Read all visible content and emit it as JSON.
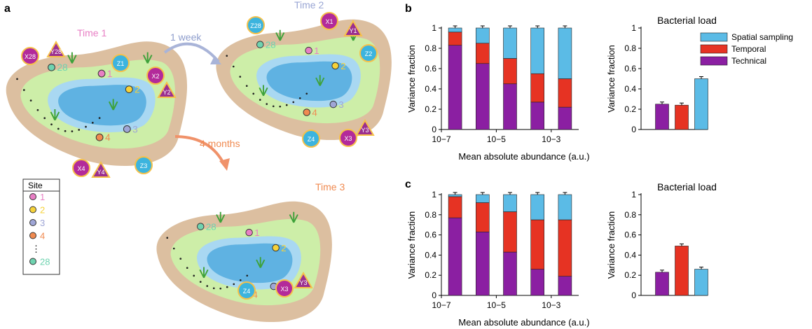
{
  "panel_letters": {
    "a": "a",
    "b": "b",
    "c": "c"
  },
  "schematic": {
    "time1": "Time 1",
    "time2": "Time 2",
    "time3": "Time 3",
    "arrow_week": "1 week",
    "arrow_months": "4 months",
    "legend_title": "Site",
    "legend_items": [
      "1",
      "2",
      "3",
      "4",
      "⋮",
      "28"
    ],
    "site_labels": [
      "1",
      "2",
      "3",
      "4",
      "28"
    ],
    "sample_labels": {
      "X1": "X1",
      "Y1": "Y1",
      "Z1": "Z1",
      "X2": "X2",
      "Y2": "Y2",
      "Z2": "Z2",
      "X3": "X3",
      "Y3": "Y3",
      "Z3": "Z3",
      "X4": "X4",
      "Y4": "Y4",
      "Z4": "Z4",
      "X28": "X28",
      "Y28": "Y28",
      "Z28": "Z28"
    },
    "colors": {
      "land": "#dcbfa0",
      "grass": "#cdeea8",
      "water_outer": "#a9d8f2",
      "water_inner": "#5fb2e2",
      "site1": "#e87fc4",
      "site2": "#f6d23a",
      "site3": "#9fa6d6",
      "site4": "#f08a50",
      "site28": "#6fd3b0",
      "sampleX": "#b32a9a",
      "sampleY": "#9b2f8f",
      "sampleZ": "#3cb4de",
      "arrow_week": "#a9b4d8",
      "arrow_months": "#f0926a"
    }
  },
  "legend": {
    "entries": [
      {
        "label": "Spatial sampling",
        "color": "#5bbbe6"
      },
      {
        "label": "Temporal",
        "color": "#e63323"
      },
      {
        "label": "Technical",
        "color": "#8b1fa2"
      }
    ]
  },
  "chart_data": [
    {
      "panel": "b",
      "type": "bar",
      "stacked": true,
      "ylabel": "Variance fraction",
      "xlabel": "Mean absolute abundance (a.u.)",
      "ylim": [
        0,
        1
      ],
      "yticks": [
        "0",
        "0.2",
        "0.4",
        "0.6",
        "0.8",
        "1"
      ],
      "xticks": [
        "10−7",
        "10−5",
        "10−3"
      ],
      "categories": [
        "bin1",
        "bin2",
        "bin3",
        "bin4",
        "bin5"
      ],
      "series": [
        {
          "name": "Technical",
          "values": [
            0.83,
            0.65,
            0.45,
            0.27,
            0.22
          ]
        },
        {
          "name": "Temporal",
          "values": [
            0.13,
            0.2,
            0.25,
            0.28,
            0.28
          ]
        },
        {
          "name": "Spatial sampling",
          "values": [
            0.04,
            0.15,
            0.3,
            0.45,
            0.5
          ]
        }
      ]
    },
    {
      "panel": "b",
      "type": "bar",
      "title": "Bacterial load",
      "ylabel": "Variance fraction",
      "ylim": [
        0,
        1
      ],
      "yticks": [
        "0",
        "0.2",
        "0.4",
        "0.6",
        "0.8",
        "1"
      ],
      "categories": [
        "Technical",
        "Temporal",
        "Spatial sampling"
      ],
      "values": [
        0.25,
        0.24,
        0.5
      ]
    },
    {
      "panel": "c",
      "type": "bar",
      "stacked": true,
      "ylabel": "Variance fraction",
      "xlabel": "Mean absolute abundance (a.u.)",
      "ylim": [
        0,
        1
      ],
      "yticks": [
        "0",
        "0.2",
        "0.4",
        "0.6",
        "0.8",
        "1"
      ],
      "xticks": [
        "10−7",
        "10−5",
        "10−3"
      ],
      "categories": [
        "bin1",
        "bin2",
        "bin3",
        "bin4",
        "bin5"
      ],
      "series": [
        {
          "name": "Technical",
          "values": [
            0.77,
            0.63,
            0.43,
            0.26,
            0.19
          ]
        },
        {
          "name": "Temporal",
          "values": [
            0.21,
            0.29,
            0.4,
            0.49,
            0.56
          ]
        },
        {
          "name": "Spatial sampling",
          "values": [
            0.02,
            0.08,
            0.17,
            0.25,
            0.25
          ]
        }
      ]
    },
    {
      "panel": "c",
      "type": "bar",
      "title": "Bacterial load",
      "ylabel": "Variance fraction",
      "ylim": [
        0,
        1
      ],
      "yticks": [
        "0",
        "0.2",
        "0.4",
        "0.6",
        "0.8",
        "1"
      ],
      "categories": [
        "Technical",
        "Temporal",
        "Spatial sampling"
      ],
      "values": [
        0.23,
        0.49,
        0.26
      ]
    }
  ]
}
